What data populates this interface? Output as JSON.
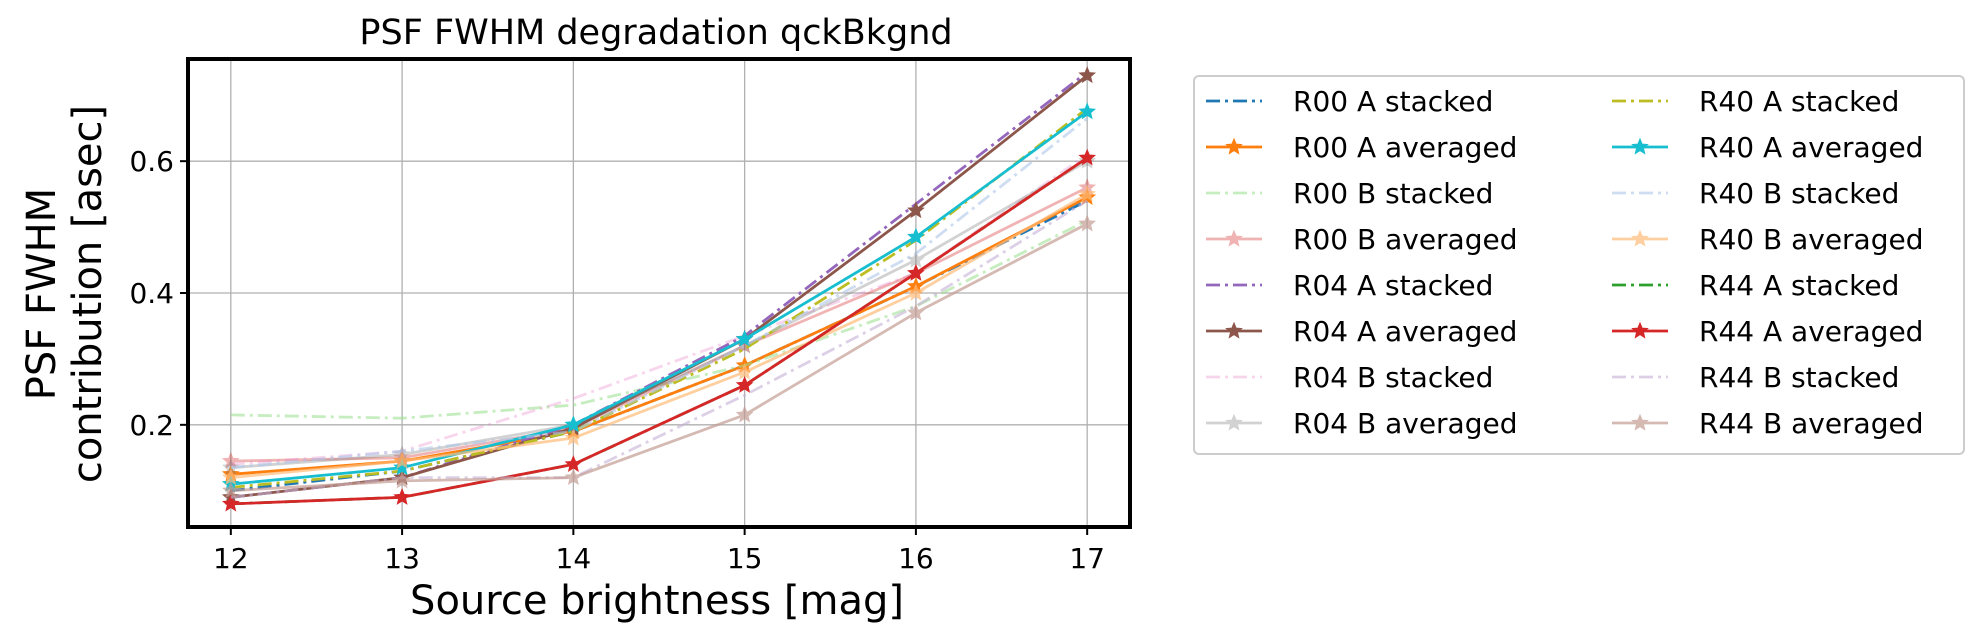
{
  "chart_data": {
    "type": "line",
    "title": "PSF FWHM degradation qckBkgnd",
    "xlabel": "Source brightness [mag]",
    "ylabel_line1": "PSF FWHM",
    "ylabel_line2": "contribution [asec]",
    "x": [
      12,
      13,
      14,
      15,
      16,
      17
    ],
    "xticks": [
      "12",
      "13",
      "14",
      "15",
      "16",
      "17"
    ],
    "yticks": [
      "0.2",
      "0.4",
      "0.6"
    ],
    "xlim": [
      11.75,
      17.25
    ],
    "ylim": [
      0.045,
      0.755
    ],
    "grid": true,
    "legend_position": "outside-right",
    "legend_columns": 2,
    "series": [
      {
        "name": "R00 A stacked",
        "color": "#1f77b4",
        "style": "dashdot",
        "marker": "none",
        "alpha": 1.0,
        "values": [
          0.1,
          0.13,
          0.19,
          0.29,
          0.41,
          0.54
        ]
      },
      {
        "name": "R00 A averaged",
        "color": "#ff7f0e",
        "style": "solid",
        "marker": "star",
        "alpha": 1.0,
        "values": [
          0.125,
          0.145,
          0.19,
          0.29,
          0.41,
          0.545
        ]
      },
      {
        "name": "R00 B stacked",
        "color": "#98df8a",
        "style": "dashdot",
        "marker": "none",
        "alpha": 0.55,
        "values": [
          0.215,
          0.21,
          0.23,
          0.29,
          0.38,
          0.51
        ]
      },
      {
        "name": "R00 B averaged",
        "color": "#d62728",
        "style": "solid",
        "marker": "star",
        "alpha": 0.35,
        "values": [
          0.145,
          0.15,
          0.195,
          0.32,
          0.43,
          0.56
        ]
      },
      {
        "name": "R04 A stacked",
        "color": "#9467bd",
        "style": "dashdot",
        "marker": "none",
        "alpha": 1.0,
        "values": [
          0.09,
          0.12,
          0.2,
          0.335,
          0.535,
          0.735
        ]
      },
      {
        "name": "R04 A averaged",
        "color": "#8c564b",
        "style": "solid",
        "marker": "star",
        "alpha": 1.0,
        "values": [
          0.09,
          0.12,
          0.195,
          0.33,
          0.525,
          0.73
        ]
      },
      {
        "name": "R04 B stacked",
        "color": "#e377c2",
        "style": "dashdot",
        "marker": "none",
        "alpha": 0.3,
        "values": [
          0.14,
          0.16,
          0.24,
          0.335,
          0.43,
          0.61
        ]
      },
      {
        "name": "R04 B averaged",
        "color": "#7f7f7f",
        "style": "solid",
        "marker": "star",
        "alpha": 0.35,
        "values": [
          0.135,
          0.155,
          0.2,
          0.32,
          0.45,
          0.6
        ]
      },
      {
        "name": "R40 A stacked",
        "color": "#bcbd22",
        "style": "dashdot",
        "marker": "none",
        "alpha": 1.0,
        "values": [
          0.105,
          0.13,
          0.19,
          0.315,
          0.48,
          0.68
        ]
      },
      {
        "name": "R40 A averaged",
        "color": "#17becf",
        "style": "solid",
        "marker": "star",
        "alpha": 1.0,
        "values": [
          0.11,
          0.135,
          0.2,
          0.33,
          0.485,
          0.675
        ]
      },
      {
        "name": "R40 B stacked",
        "color": "#aec7e8",
        "style": "dashdot",
        "marker": "none",
        "alpha": 0.6,
        "values": [
          0.135,
          0.16,
          0.19,
          0.32,
          0.46,
          0.665
        ]
      },
      {
        "name": "R40 B averaged",
        "color": "#ffbb78",
        "style": "solid",
        "marker": "star",
        "alpha": 0.7,
        "values": [
          0.12,
          0.145,
          0.18,
          0.28,
          0.4,
          0.55
        ]
      },
      {
        "name": "R44 A stacked",
        "color": "#2ca02c",
        "style": "dashdot",
        "marker": "none",
        "alpha": 1.0,
        "values": [
          0.08,
          0.09,
          0.14,
          0.26,
          0.43,
          0.605
        ]
      },
      {
        "name": "R44 A averaged",
        "color": "#d62728",
        "style": "solid",
        "marker": "star",
        "alpha": 1.0,
        "values": [
          0.08,
          0.09,
          0.14,
          0.26,
          0.43,
          0.605
        ]
      },
      {
        "name": "R44 B stacked",
        "color": "#c5b0d5",
        "style": "dashdot",
        "marker": "none",
        "alpha": 0.6,
        "values": [
          0.09,
          0.12,
          0.12,
          0.245,
          0.38,
          0.54
        ]
      },
      {
        "name": "R44 B averaged",
        "color": "#c49c94",
        "style": "solid",
        "marker": "star",
        "alpha": 0.7,
        "values": [
          0.1,
          0.115,
          0.12,
          0.215,
          0.37,
          0.505
        ]
      }
    ]
  }
}
